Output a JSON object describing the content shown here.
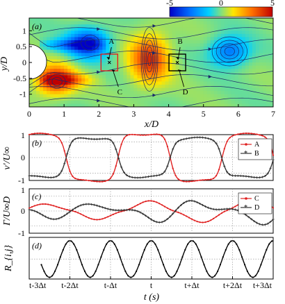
{
  "chart_data": [
    {
      "type": "heatmap",
      "panel_label": "(a)",
      "xlabel": "x/D",
      "ylabel": "y/D",
      "xlim": [
        0,
        7
      ],
      "ylim": [
        -1.4,
        1.4
      ],
      "xticks": [
        "0",
        "1",
        "2",
        "3",
        "4",
        "5",
        "6",
        "7"
      ],
      "yticks": [
        "1",
        "0.5",
        "0",
        "-0.5",
        "-1"
      ],
      "colorbar": {
        "ticks": [
          "-5",
          "0",
          "5"
        ],
        "range": [
          -5,
          5
        ],
        "colors": [
          "#0000c8",
          "#00a0ff",
          "#7fd3a0",
          "#c8e650",
          "#ffc000",
          "#c80000"
        ]
      },
      "vortices": [
        {
          "x": 1.7,
          "y": 0.6,
          "strength": -4.2
        },
        {
          "x": 0.75,
          "y": -0.55,
          "strength": 4.5
        },
        {
          "x": 3.45,
          "y": 0.1,
          "strength": 4.0
        },
        {
          "x": 5.75,
          "y": 0.35,
          "strength": -3.0
        }
      ],
      "cylinder": {
        "x": 0,
        "y": 0,
        "radius": 0.5
      },
      "probes": [
        {
          "name": "A",
          "x": 2.3,
          "y": 0.0,
          "box": "red"
        },
        {
          "name": "B",
          "x": 4.25,
          "y": 0.0,
          "box": "black"
        },
        {
          "name": "C",
          "x": 2.4,
          "y": -0.2
        },
        {
          "name": "D",
          "x": 4.3,
          "y": -0.2
        }
      ]
    },
    {
      "type": "line",
      "panel_label": "(b)",
      "ylabel": "v'/U∞",
      "ylim": [
        -1,
        1
      ],
      "yticks": [
        "1",
        "0",
        "-1"
      ],
      "series": [
        {
          "name": "A",
          "color": "#e02020",
          "marker": "dot",
          "phase": 0.0,
          "amplitude": 0.75
        },
        {
          "name": "B",
          "color": "#333333",
          "marker": "star",
          "phase": 3.14159,
          "amplitude": 0.62
        }
      ]
    },
    {
      "type": "line",
      "panel_label": "(c)",
      "ylabel": "Γ/U∞D",
      "ylim": [
        -1,
        1
      ],
      "yticks": [
        "1",
        "0",
        "-1"
      ],
      "series": [
        {
          "name": "C",
          "color": "#e02020",
          "marker": "dot"
        },
        {
          "name": "D",
          "color": "#333333",
          "marker": "star"
        }
      ]
    },
    {
      "type": "line",
      "panel_label": "(d)",
      "ylabel": "R_{i,j}",
      "xlabel": "t (s)",
      "xticks": [
        "t-3Δt",
        "t-2Δt",
        "t-Δt",
        "t",
        "t+Δt",
        "t+2Δt",
        "t+3Δt"
      ],
      "series": [
        {
          "name": "R",
          "color": "#000000",
          "marker": "dot",
          "period_dt": 1.0,
          "peaks_at": [
            -2,
            -1,
            0,
            1,
            2,
            3
          ]
        }
      ]
    }
  ]
}
